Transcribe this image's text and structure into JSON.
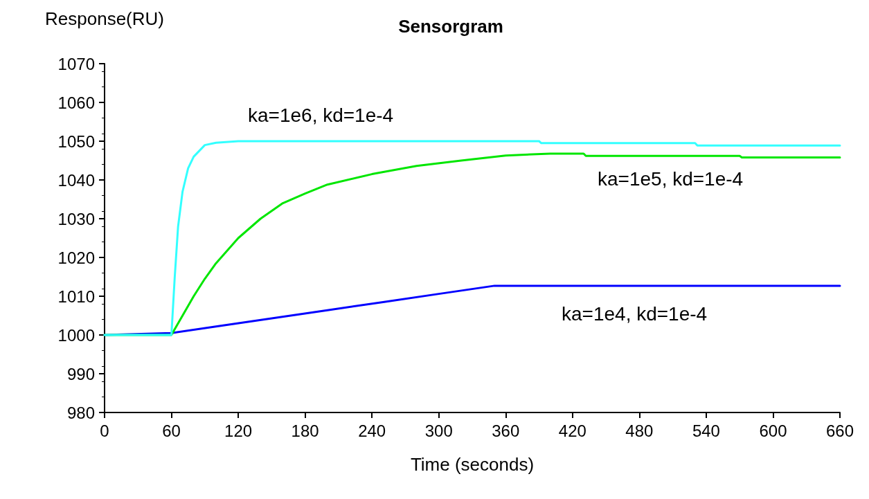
{
  "chart_data": {
    "type": "line",
    "title": "Sensorgram",
    "xlabel": "Time (seconds)",
    "ylabel": "Response(RU)",
    "xlim": [
      0,
      660
    ],
    "xticks": [
      0,
      60,
      120,
      180,
      240,
      300,
      360,
      420,
      480,
      540,
      600,
      660
    ],
    "ylim": [
      980,
      1070
    ],
    "yticks": [
      980,
      990,
      1000,
      1010,
      1020,
      1030,
      1040,
      1050,
      1060,
      1070
    ],
    "grid": false,
    "marker": "none",
    "line_style": "solid",
    "series": [
      {
        "name": "ka=1e4, kd=1e-4",
        "color": "#0000ff",
        "x": [
          0,
          60,
          100,
          150,
          200,
          250,
          300,
          350,
          660
        ],
        "values": [
          1000,
          1000.5,
          1002.2,
          1004.3,
          1006.4,
          1008.5,
          1010.6,
          1012.7,
          1012.7
        ]
      },
      {
        "name": "ka=1e5, kd=1e-4",
        "color": "#00e600",
        "x": [
          0,
          60,
          70,
          80,
          90,
          100,
          120,
          140,
          160,
          180,
          200,
          240,
          280,
          320,
          360,
          400,
          430,
          432,
          570,
          572,
          660
        ],
        "values": [
          1000,
          1000,
          1005,
          1010,
          1014.5,
          1018.5,
          1025,
          1030,
          1034,
          1036.5,
          1038.8,
          1041.5,
          1043.6,
          1045,
          1046.3,
          1046.8,
          1046.8,
          1046.2,
          1046.2,
          1045.8,
          1045.8
        ]
      },
      {
        "name": "ka=1e6, kd=1e-4",
        "color": "#33ffff",
        "x": [
          0,
          60,
          63,
          66,
          70,
          75,
          80,
          90,
          100,
          120,
          390,
          392,
          530,
          532,
          660
        ],
        "values": [
          1000,
          1000,
          1015,
          1028,
          1037,
          1043,
          1046,
          1049,
          1049.6,
          1050,
          1050,
          1049.5,
          1049.5,
          1048.9,
          1048.9
        ]
      }
    ]
  }
}
